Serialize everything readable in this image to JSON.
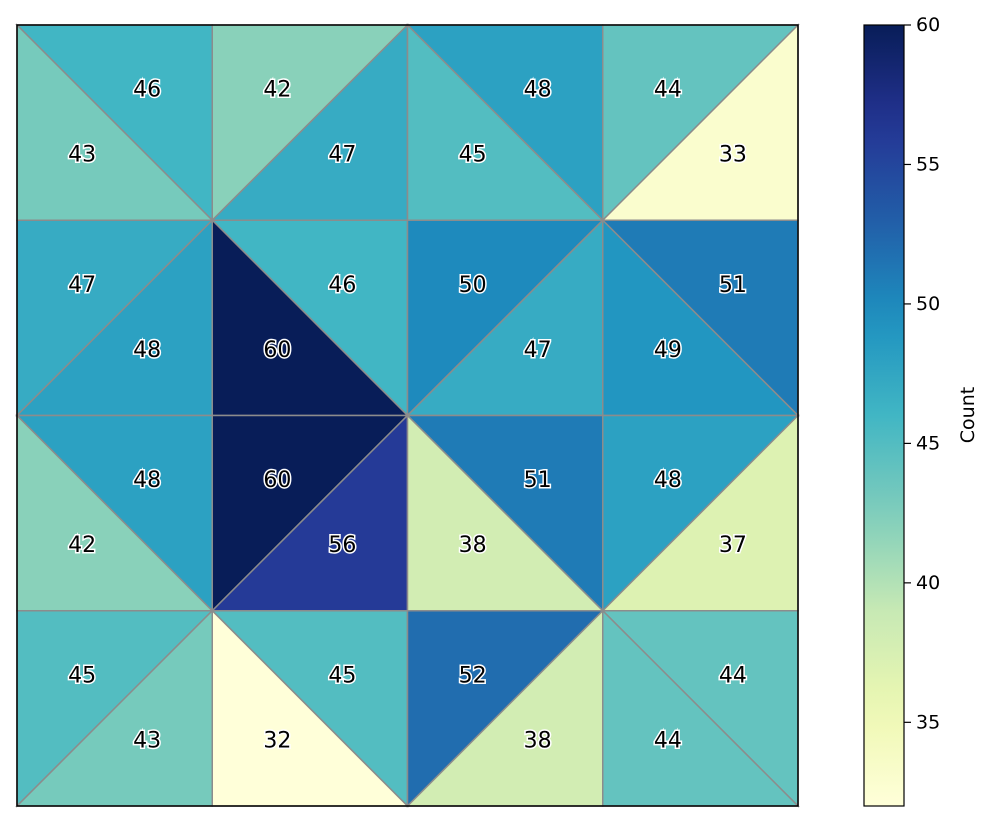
{
  "chart_data": {
    "type": "heatmap",
    "subtype": "triangular-tripcolor",
    "grid": {
      "cols": 4,
      "rows": 4
    },
    "cmap": "YlGnBu",
    "vmin": 32,
    "vmax": 60,
    "colorbar": {
      "label": "Count",
      "ticks": [
        35,
        40,
        45,
        50,
        55,
        60
      ],
      "tick_labels": [
        "35",
        "40",
        "45",
        "50",
        "55",
        "60"
      ]
    },
    "edge_color": "#8c8c8c",
    "cells": [
      {
        "row": 0,
        "col": 0,
        "diagonal": "\\",
        "upper_right": 46,
        "lower_left": 43
      },
      {
        "row": 0,
        "col": 1,
        "diagonal": "/",
        "upper_left": 42,
        "lower_right": 47
      },
      {
        "row": 0,
        "col": 2,
        "diagonal": "\\",
        "upper_right": 48,
        "lower_left": 45
      },
      {
        "row": 0,
        "col": 3,
        "diagonal": "/",
        "upper_left": 44,
        "lower_right": 33
      },
      {
        "row": 1,
        "col": 0,
        "diagonal": "/",
        "upper_left": 47,
        "lower_right": 48
      },
      {
        "row": 1,
        "col": 1,
        "diagonal": "\\",
        "upper_right": 46,
        "lower_left": 60
      },
      {
        "row": 1,
        "col": 2,
        "diagonal": "/",
        "upper_left": 50,
        "lower_right": 47
      },
      {
        "row": 1,
        "col": 3,
        "diagonal": "\\",
        "upper_right": 51,
        "lower_left": 49
      },
      {
        "row": 2,
        "col": 0,
        "diagonal": "\\",
        "upper_right": 48,
        "lower_left": 42
      },
      {
        "row": 2,
        "col": 1,
        "diagonal": "/",
        "upper_left": 60,
        "lower_right": 56
      },
      {
        "row": 2,
        "col": 2,
        "diagonal": "\\",
        "upper_right": 51,
        "lower_left": 38
      },
      {
        "row": 2,
        "col": 3,
        "diagonal": "/",
        "upper_left": 48,
        "lower_right": 37
      },
      {
        "row": 3,
        "col": 0,
        "diagonal": "/",
        "upper_left": 45,
        "lower_right": 43
      },
      {
        "row": 3,
        "col": 1,
        "diagonal": "\\",
        "upper_right": 45,
        "lower_left": 32
      },
      {
        "row": 3,
        "col": 2,
        "diagonal": "/",
        "upper_left": 52,
        "lower_right": 38
      },
      {
        "row": 3,
        "col": 3,
        "diagonal": "\\",
        "upper_right": 44,
        "lower_left": 44
      }
    ]
  }
}
